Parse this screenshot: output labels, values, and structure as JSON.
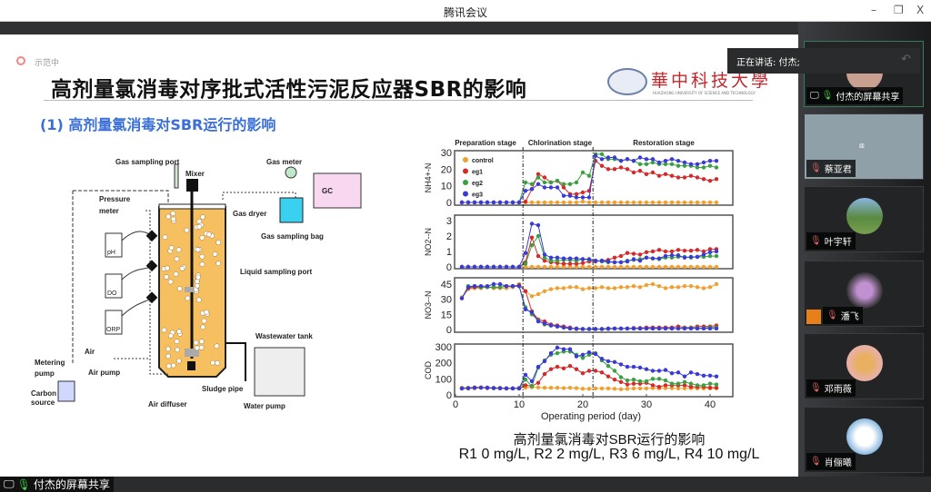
{
  "window": {
    "title": "腾讯会议",
    "minimize": "–",
    "restore": "❐",
    "close": "X"
  },
  "slide": {
    "header_tag": "示范中",
    "title": "高剂量氯消毒对序批式活性污泥反应器SBR的影响",
    "subtitle": "(1) 高剂量氯消毒对SBR运行的影响",
    "logo_text": "華中科技大學",
    "logo_subtext": "HUAZHONG UNIVERSITY OF SCIENCE AND TECHNOLOGY",
    "caption_line1": "高剂量氯消毒对SBR运行的影响",
    "caption_line2": "R1 0 mg/L, R2 2 mg/L, R3 6 mg/L, R4 10 mg/L",
    "diagram": {
      "labels": {
        "gas_sampling_port": "Gas sampling port",
        "mixer": "Mixer",
        "gas_meter": "Gas meter",
        "gc": "GC",
        "pressure_meter_1": "Pressure",
        "pressure_meter_2": "meter",
        "gas_dryer": "Gas dryer",
        "gas_sampling_bag": "Gas sampling bag",
        "ph": "pH",
        "do": "DO",
        "orp": "ORP",
        "liquid_sampling_port": "Liquid sampling port",
        "wastewater_tank": "Wastewater tank",
        "metering_pump_1": "Metering",
        "metering_pump_2": "pump",
        "air": "Air",
        "air_pump": "Air pump",
        "carbon_source_1": "Carbon",
        "carbon_source_2": "source",
        "air_diffuser": "Air diffuser",
        "sludge_pipe": "Sludge pipe",
        "water_pump": "Water pump"
      }
    }
  },
  "chart_data": {
    "type": "line",
    "xlabel": "Operating period (day)",
    "xlim": [
      0,
      42
    ],
    "xticks": [
      0,
      10,
      20,
      30,
      40
    ],
    "stages": [
      {
        "label": "Preparation stage"
      },
      {
        "label": "Chlorination stage",
        "start": 10.6
      },
      {
        "label": "Restoration stage",
        "start": 21.6
      }
    ],
    "legend": {
      "placement": "top-left",
      "entries": [
        "control",
        "eg1",
        "eg2",
        "eg3"
      ]
    },
    "colors": {
      "control": "#f0a030",
      "eg1": "#d42a2a",
      "eg2": "#3aa040",
      "eg3": "#3a3ad8"
    },
    "x": [
      1,
      2,
      3,
      4,
      5,
      6,
      7,
      8,
      9,
      10,
      11,
      12,
      13,
      14,
      15,
      16,
      17,
      18,
      19,
      20,
      21,
      22,
      23,
      24,
      25,
      26,
      27,
      28,
      29,
      30,
      31,
      32,
      33,
      34,
      35,
      36,
      37,
      38,
      39,
      40,
      41
    ],
    "panels": [
      {
        "ylabel": "NH4+-N",
        "ylim": [
          0,
          30
        ],
        "yticks": [
          0,
          10,
          20,
          30
        ],
        "series": [
          {
            "name": "control",
            "values": [
              0,
              0,
              0,
              0,
              0,
              0,
              0,
              0,
              0,
              0,
              0,
              0,
              0,
              0,
              0,
              0,
              0,
              0,
              0,
              0.5,
              0,
              0,
              0,
              0,
              0,
              0,
              0,
              0,
              0,
              0,
              0,
              0,
              0,
              0,
              0,
              0,
              0,
              0,
              0,
              0,
              0
            ]
          },
          {
            "name": "eg1",
            "values": [
              0,
              0,
              0,
              0,
              0,
              0,
              0,
              0,
              0,
              0,
              0.5,
              8,
              17,
              15,
              12,
              13,
              9,
              5,
              5,
              6,
              7,
              25,
              22,
              20,
              20,
              21,
              20,
              18,
              19,
              17,
              18,
              16,
              17,
              16,
              15,
              15,
              16,
              15,
              14,
              13,
              14
            ]
          },
          {
            "name": "eg2",
            "values": [
              0,
              0,
              0,
              0,
              0,
              0,
              0,
              0,
              0,
              0,
              12,
              11,
              15,
              12,
              12,
              13,
              11,
              11,
              12,
              18,
              16,
              29,
              29,
              26,
              26,
              25,
              26,
              25,
              23,
              23,
              24,
              23,
              23,
              23,
              22,
              22,
              22,
              21,
              21,
              22,
              21
            ]
          },
          {
            "name": "eg3",
            "values": [
              0,
              0,
              0,
              0,
              0,
              0,
              0,
              0,
              0,
              0,
              7,
              8,
              11,
              9,
              9,
              9,
              4,
              4,
              3,
              3,
              3,
              28,
              26,
              27,
              27,
              25,
              26,
              25,
              27,
              26,
              26,
              24,
              25,
              26,
              25,
              24,
              23,
              23,
              24,
              25,
              25
            ]
          }
        ]
      },
      {
        "ylabel": "NO2--N",
        "ylim": [
          0,
          3
        ],
        "yticks": [
          0,
          1,
          2,
          3
        ],
        "series": [
          {
            "name": "control",
            "values": [
              0,
              0,
              0,
              0,
              0,
              0,
              0,
              0,
              0,
              0,
              0,
              0,
              0,
              0,
              0,
              0,
              0,
              0,
              0,
              0,
              0,
              0,
              0,
              0,
              0,
              0,
              0,
              0,
              0,
              0,
              0,
              0,
              0,
              0,
              0,
              0,
              0,
              0,
              0,
              0,
              0
            ]
          },
          {
            "name": "eg1",
            "values": [
              0,
              0,
              0,
              0,
              0,
              0,
              0,
              0,
              0,
              0,
              0.3,
              1.9,
              0.7,
              0.4,
              0.3,
              0.25,
              0.2,
              0.2,
              0.2,
              0.25,
              0.35,
              0.35,
              0.4,
              0.45,
              0.6,
              0.7,
              0.9,
              0.85,
              0.8,
              0.95,
              1.0,
              1.1,
              1.0,
              1.0,
              1.1,
              1.05,
              1.05,
              1.1,
              1.0,
              1.15,
              1.15
            ]
          },
          {
            "name": "eg2",
            "values": [
              0,
              0,
              0,
              0,
              0,
              0,
              0,
              0,
              0,
              0,
              0.2,
              1.4,
              2.0,
              0.6,
              0.4,
              0.4,
              0.45,
              0.45,
              0.4,
              0.5,
              0.45,
              0.4,
              0.35,
              0.3,
              0.3,
              0.3,
              0.4,
              0.45,
              0.5,
              0.6,
              0.55,
              0.5,
              0.6,
              0.6,
              0.65,
              0.65,
              0.6,
              0.65,
              0.65,
              0.7,
              0.7
            ]
          },
          {
            "name": "eg3",
            "values": [
              0,
              0,
              0,
              0,
              0,
              0,
              0,
              0,
              0,
              0,
              0.9,
              2.8,
              2.7,
              0.8,
              0.6,
              0.6,
              0.55,
              0.55,
              0.55,
              0.5,
              0.5,
              0.4,
              0.4,
              0.35,
              0.3,
              0.3,
              0.35,
              0.5,
              0.4,
              0.6,
              0.55,
              0.55,
              0.7,
              0.75,
              0.75,
              0.6,
              0.65,
              0.65,
              0.8,
              0.95,
              1.0
            ]
          }
        ]
      },
      {
        "ylabel": "NO3--N",
        "ylim": [
          0,
          45
        ],
        "yticks": [
          0,
          15,
          30,
          45
        ],
        "series": [
          {
            "name": "control",
            "values": [
              32,
              40,
              41,
              41,
              42,
              41,
              41,
              41,
              42,
              45,
              38,
              33,
              35,
              38,
              40,
              41,
              41,
              42,
              42,
              40,
              41,
              41,
              42,
              41,
              41,
              42,
              42,
              43,
              42,
              44,
              45,
              43,
              41,
              42,
              42,
              43,
              43,
              42,
              41,
              42,
              45
            ]
          },
          {
            "name": "eg1",
            "values": [
              31,
              41,
              42,
              42,
              42,
              42,
              42,
              43,
              43,
              44,
              38,
              18,
              10,
              8,
              5,
              4,
              3,
              2,
              0.5,
              0.5,
              0.5,
              0.5,
              0.5,
              1,
              1,
              1,
              1,
              1.5,
              1.5,
              2,
              2,
              2,
              2,
              2,
              3,
              2,
              2,
              3,
              3,
              3,
              4
            ]
          },
          {
            "name": "eg2",
            "values": [
              31,
              43,
              43,
              42,
              42,
              42,
              42,
              43,
              43,
              43,
              22,
              15,
              9,
              5,
              4,
              3,
              2,
              1,
              1,
              0.5,
              0.5,
              0.5,
              0.5,
              0.5,
              1,
              1,
              1,
              1,
              1,
              1,
              1,
              1,
              1,
              1,
              1,
              1.5,
              1.5,
              1.5,
              1.5,
              2,
              2
            ]
          },
          {
            "name": "eg3",
            "values": [
              31,
              42,
              43,
              43,
              43,
              45,
              45,
              43,
              43,
              43,
              20,
              17,
              8,
              6,
              4,
              3,
              2,
              1,
              1,
              0.5,
              0.5,
              0.5,
              0.5,
              1,
              1,
              1,
              1,
              1,
              1,
              1,
              1,
              1,
              1,
              1,
              1,
              1,
              1,
              1,
              1,
              1,
              1
            ]
          }
        ]
      },
      {
        "ylabel": "COD",
        "ylim": [
          0,
          300
        ],
        "yticks": [
          0,
          100,
          200,
          300
        ],
        "series": [
          {
            "name": "control",
            "values": [
              45,
              45,
              48,
              48,
              46,
              45,
              44,
              42,
              42,
              45,
              45,
              48,
              46,
              44,
              44,
              44,
              42,
              44,
              42,
              38,
              38,
              40,
              40,
              40,
              38,
              35,
              38,
              40,
              40,
              40,
              42,
              40,
              42,
              42,
              40,
              40,
              42,
              40,
              40,
              40,
              40
            ]
          },
          {
            "name": "eg1",
            "values": [
              40,
              40,
              42,
              45,
              42,
              42,
              40,
              40,
              40,
              40,
              60,
              55,
              75,
              130,
              160,
              175,
              165,
              180,
              160,
              135,
              150,
              150,
              140,
              115,
              95,
              80,
              65,
              70,
              70,
              75,
              60,
              50,
              60,
              60,
              60,
              60,
              50,
              50,
              50,
              45,
              45
            ]
          },
          {
            "name": "eg2",
            "values": [
              40,
              42,
              45,
              45,
              45,
              42,
              42,
              40,
              40,
              40,
              95,
              55,
              170,
              215,
              250,
              260,
              270,
              270,
              250,
              230,
              250,
              260,
              215,
              180,
              150,
              110,
              90,
              95,
              85,
              85,
              100,
              100,
              90,
              70,
              70,
              80,
              70,
              60,
              60,
              70,
              65
            ]
          },
          {
            "name": "eg3",
            "values": [
              40,
              42,
              45,
              45,
              45,
              42,
              42,
              40,
              40,
              40,
              125,
              85,
              175,
              210,
              260,
              295,
              285,
              285,
              240,
              250,
              265,
              255,
              225,
              210,
              205,
              190,
              175,
              175,
              170,
              160,
              150,
              150,
              155,
              135,
              140,
              115,
              140,
              130,
              120,
              120,
              115
            ]
          }
        ]
      }
    ]
  },
  "meeting": {
    "speaking": "正在讲话: 付杰;",
    "share_label": "付杰的屏幕共享",
    "participants": [
      {
        "name": "付杰的屏幕共享"
      },
      {
        "name": "蔡亚君"
      },
      {
        "name": "叶宇轩"
      },
      {
        "name": "潘飞"
      },
      {
        "name": "邓雨薇"
      },
      {
        "name": "肖俪曦"
      }
    ]
  }
}
